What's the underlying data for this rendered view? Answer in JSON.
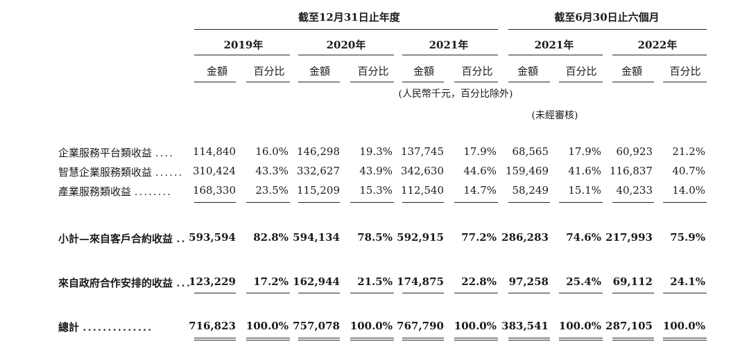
{
  "headers": {
    "group_year": "截至12月31日止年度",
    "group_half": "截至6月30日止六個月",
    "years": [
      "2019年",
      "2020年",
      "2021年",
      "2021年",
      "2022年"
    ],
    "amount": "金額",
    "percent": "百分比",
    "unit_note": "(人民幣千元，百分比除外)",
    "unaudited": "(未經審核)"
  },
  "rows": [
    {
      "label": "企業服務平台類收益",
      "leader": "....",
      "values": [
        "114,840",
        "16.0%",
        "146,298",
        "19.3%",
        "137,745",
        "17.9%",
        "68,565",
        "17.9%",
        "60,923",
        "21.2%"
      ]
    },
    {
      "label": "智慧企業服務類收益",
      "leader": "......",
      "values": [
        "310,424",
        "43.3%",
        "332,627",
        "43.9%",
        "342,630",
        "44.6%",
        "159,469",
        "41.6%",
        "116,837",
        "40.7%"
      ]
    },
    {
      "label": "產業服務類收益",
      "leader": "........",
      "values": [
        "168,330",
        "23.5%",
        "115,209",
        "15.3%",
        "112,540",
        "14.7%",
        "58,249",
        "15.1%",
        "40,233",
        "14.0%"
      ]
    },
    {
      "label": "小計—來自客戶合約收益",
      "leader": "..",
      "values": [
        "593,594",
        "82.8%",
        "594,134",
        "78.5%",
        "592,915",
        "77.2%",
        "286,283",
        "74.6%",
        "217,993",
        "75.9%"
      ]
    },
    {
      "label": "來自政府合作安排的收益",
      "leader": "...",
      "values": [
        "123,229",
        "17.2%",
        "162,944",
        "21.5%",
        "174,875",
        "22.8%",
        "97,258",
        "25.4%",
        "69,112",
        "24.1%"
      ]
    },
    {
      "label": "總計",
      "leader": "..............",
      "values": [
        "716,823",
        "100.0%",
        "757,078",
        "100.0%",
        "767,790",
        "100.0%",
        "383,541",
        "100.0%",
        "287,105",
        "100.0%"
      ]
    }
  ]
}
